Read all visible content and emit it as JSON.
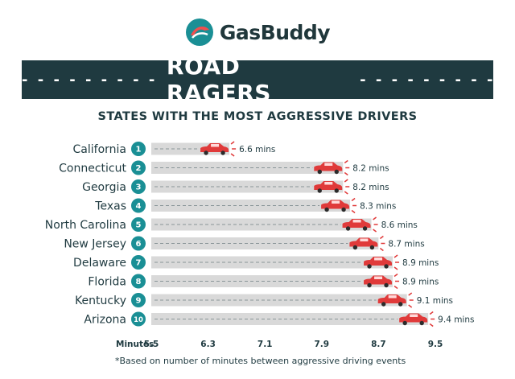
{
  "brand": {
    "name": "GasBuddy",
    "icon": "gasbuddy-logo-icon"
  },
  "banner": {
    "title": "ROAD RAGERS"
  },
  "subtitle": "STATES WITH THE MOST AGGRESSIVE DRIVERS",
  "chart_data": {
    "type": "bar",
    "orientation": "horizontal",
    "categories": [
      "California",
      "Connecticut",
      "Georgia",
      "Texas",
      "North Carolina",
      "New Jersey",
      "Delaware",
      "Florida",
      "Kentucky",
      "Arizona"
    ],
    "ranks": [
      "1",
      "2",
      "3",
      "4",
      "5",
      "6",
      "7",
      "8",
      "9",
      "10"
    ],
    "values": [
      6.6,
      8.2,
      8.2,
      8.3,
      8.6,
      8.7,
      8.9,
      8.9,
      9.1,
      9.4
    ],
    "value_labels": [
      "6.6 mins",
      "8.2 mins",
      "8.2 mins",
      "8.3 mins",
      "8.6 mins",
      "8.7 mins",
      "8.9 mins",
      "8.9 mins",
      "9.1 mins",
      "9.4 mins"
    ],
    "xlabel": "Minutes",
    "xlim": [
      5.5,
      9.5
    ],
    "xticks": [
      "5.5",
      "6.3",
      "7.1",
      "7.9",
      "8.7",
      "9.5"
    ],
    "grid": false,
    "colors": {
      "bar": "#d9d9d9",
      "car": "#e03a3a",
      "badge": "#1a8f95",
      "text": "#1f3a40"
    }
  },
  "footnote": "*Based on number of minutes between aggressive driving events"
}
